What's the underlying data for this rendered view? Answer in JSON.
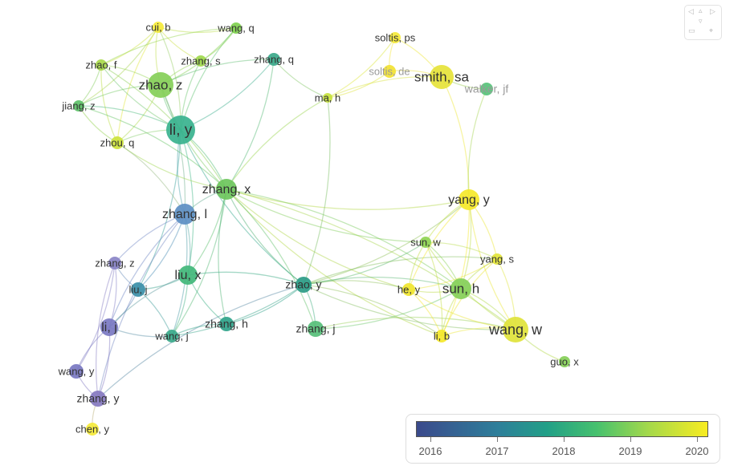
{
  "colors": {
    "y2016": "#3b4a8c",
    "y2017": "#2e7f9a",
    "y2018": "#22a087",
    "y2019": "#47c16e",
    "y2020": "#f8ec21"
  },
  "nodes": [
    {
      "id": "cui_b",
      "label": "cui, b",
      "color": "#f5ea3a"
    },
    {
      "id": "wang_q",
      "label": "wang, q",
      "color": "#7fd04e"
    },
    {
      "id": "zhang_q",
      "label": "zhang, q",
      "color": "#3aa98a"
    },
    {
      "id": "zhao_f",
      "label": "zhao, f",
      "color": "#a8d94a"
    },
    {
      "id": "zhao_z",
      "label": "zhao, z",
      "color": "#86cf58"
    },
    {
      "id": "zhang_s",
      "label": "zhang, s",
      "color": "#9ed84c"
    },
    {
      "id": "jiang_z",
      "label": "jiang, z",
      "color": "#5cc067"
    },
    {
      "id": "li_y",
      "label": "li, y",
      "color": "#38b28e"
    },
    {
      "id": "zhou_q",
      "label": "zhou, q",
      "color": "#cde33c"
    },
    {
      "id": "zhang_x",
      "label": "zhang, x",
      "color": "#6cc55c"
    },
    {
      "id": "zhang_l",
      "label": "zhang, l",
      "color": "#5d8fc3"
    },
    {
      "id": "zhang_z",
      "label": "zhang, z",
      "color": "#8a84c7"
    },
    {
      "id": "liu_x",
      "label": "liu, x",
      "color": "#41b77a"
    },
    {
      "id": "liu_j",
      "label": "liu, j",
      "color": "#3b8fa8"
    },
    {
      "id": "li_j",
      "label": "li, j",
      "color": "#7a78c2"
    },
    {
      "id": "wang_j",
      "label": "wang, j",
      "color": "#3aa98a"
    },
    {
      "id": "zhang_h",
      "label": "zhang, h",
      "color": "#2fa38a"
    },
    {
      "id": "zhao_y",
      "label": "zhao, y",
      "color": "#2a9b86"
    },
    {
      "id": "zhang_j",
      "label": "zhang, j",
      "color": "#56bf78"
    },
    {
      "id": "wang_y",
      "label": "wang, y",
      "color": "#7a78c2"
    },
    {
      "id": "zhang_y",
      "label": "zhang, y",
      "color": "#8578c0"
    },
    {
      "id": "chen_y",
      "label": "chen, y",
      "color": "#f5ea3a"
    },
    {
      "id": "ma_h",
      "label": "ma, h",
      "color": "#c7e23d"
    },
    {
      "id": "soltis_ps",
      "label": "soltis, ps",
      "color": "#f5ea3a"
    },
    {
      "id": "soltis_de",
      "label": "soltis, de",
      "color": "#f2e233"
    },
    {
      "id": "smith_sa",
      "label": "smith, sa",
      "color": "#e6e33a"
    },
    {
      "id": "walker_jf",
      "label": "walker, jf",
      "color": "#57c27a"
    },
    {
      "id": "yang_y",
      "label": "yang, y",
      "color": "#f5e82a"
    },
    {
      "id": "sun_w",
      "label": "sun, w",
      "color": "#8fd452"
    },
    {
      "id": "yang_s",
      "label": "yang, s",
      "color": "#e2e43a"
    },
    {
      "id": "he_y",
      "label": "he, y",
      "color": "#f0e52e"
    },
    {
      "id": "sun_h",
      "label": "sun, h",
      "color": "#84cf58"
    },
    {
      "id": "li_b",
      "label": "li, b",
      "color": "#f5e82a"
    },
    {
      "id": "wang_w",
      "label": "wang, w",
      "color": "#dfe33a"
    },
    {
      "id": "guo_x",
      "label": "guo, x",
      "color": "#86cf58"
    }
  ],
  "edges": [
    [
      "cui_b",
      "zhao_z"
    ],
    [
      "cui_b",
      "li_y"
    ],
    [
      "cui_b",
      "wang_q"
    ],
    [
      "cui_b",
      "zhao_f"
    ],
    [
      "cui_b",
      "zhang_s"
    ],
    [
      "cui_b",
      "jiang_z"
    ],
    [
      "cui_b",
      "zhou_q"
    ],
    [
      "wang_q",
      "zhao_z"
    ],
    [
      "wang_q",
      "li_y"
    ],
    [
      "wang_q",
      "zhang_s"
    ],
    [
      "wang_q",
      "zhao_f"
    ],
    [
      "zhang_q",
      "li_y"
    ],
    [
      "zhang_q",
      "zhao_z"
    ],
    [
      "zhang_q",
      "zhang_x"
    ],
    [
      "zhang_q",
      "ma_h"
    ],
    [
      "zhao_f",
      "zhao_z"
    ],
    [
      "zhao_f",
      "li_y"
    ],
    [
      "zhao_f",
      "jiang_z"
    ],
    [
      "zhao_f",
      "zhou_q"
    ],
    [
      "zhao_f",
      "zhang_x"
    ],
    [
      "zhao_z",
      "li_y"
    ],
    [
      "zhao_z",
      "zhang_s"
    ],
    [
      "zhao_z",
      "jiang_z"
    ],
    [
      "zhao_z",
      "zhou_q"
    ],
    [
      "zhao_z",
      "zhang_x"
    ],
    [
      "zhao_z",
      "zhang_l"
    ],
    [
      "zhang_s",
      "li_y"
    ],
    [
      "jiang_z",
      "li_y"
    ],
    [
      "jiang_z",
      "zhou_q"
    ],
    [
      "jiang_z",
      "zhang_x"
    ],
    [
      "li_y",
      "zhou_q"
    ],
    [
      "li_y",
      "zhang_x"
    ],
    [
      "li_y",
      "zhang_l"
    ],
    [
      "li_y",
      "liu_x"
    ],
    [
      "li_y",
      "zhao_y"
    ],
    [
      "li_y",
      "liu_j"
    ],
    [
      "zhou_q",
      "zhang_x"
    ],
    [
      "zhou_q",
      "zhang_l"
    ],
    [
      "zhang_x",
      "zhang_l"
    ],
    [
      "zhang_x",
      "liu_x"
    ],
    [
      "zhang_x",
      "zhao_y"
    ],
    [
      "zhang_x",
      "ma_h"
    ],
    [
      "zhang_x",
      "yang_y"
    ],
    [
      "zhang_x",
      "sun_h"
    ],
    [
      "zhang_x",
      "li_b"
    ],
    [
      "zhang_x",
      "wang_w"
    ],
    [
      "zhang_x",
      "sun_w"
    ],
    [
      "zhang_x",
      "zhang_j"
    ],
    [
      "zhang_x",
      "he_y"
    ],
    [
      "zhang_x",
      "wang_j"
    ],
    [
      "zhang_x",
      "zhang_h"
    ],
    [
      "zhang_l",
      "liu_j"
    ],
    [
      "zhang_l",
      "li_j"
    ],
    [
      "zhang_l",
      "liu_x"
    ],
    [
      "zhang_l",
      "zhang_z"
    ],
    [
      "zhang_l",
      "wang_j"
    ],
    [
      "zhang_l",
      "zhang_y"
    ],
    [
      "zhang_z",
      "li_j"
    ],
    [
      "zhang_z",
      "liu_j"
    ],
    [
      "zhang_z",
      "wang_y"
    ],
    [
      "zhang_z",
      "zhang_y"
    ],
    [
      "liu_j",
      "li_j"
    ],
    [
      "liu_j",
      "liu_x"
    ],
    [
      "liu_j",
      "wang_j"
    ],
    [
      "li_j",
      "wang_y"
    ],
    [
      "li_j",
      "zhang_y"
    ],
    [
      "li_j",
      "wang_j"
    ],
    [
      "li_j",
      "liu_x"
    ],
    [
      "wang_y",
      "zhang_y"
    ],
    [
      "zhang_y",
      "zhao_y"
    ],
    [
      "zhang_y",
      "chen_y"
    ],
    [
      "liu_x",
      "wang_j"
    ],
    [
      "liu_x",
      "zhang_h"
    ],
    [
      "liu_x",
      "zhao_y"
    ],
    [
      "wang_j",
      "zhao_y"
    ],
    [
      "wang_j",
      "zhang_h"
    ],
    [
      "zhang_h",
      "zhao_y"
    ],
    [
      "zhao_y",
      "zhang_j"
    ],
    [
      "zhao_y",
      "ma_h"
    ],
    [
      "zhao_y",
      "sun_h"
    ],
    [
      "zhao_y",
      "wang_w"
    ],
    [
      "zhao_y",
      "li_b"
    ],
    [
      "zhao_y",
      "yang_y"
    ],
    [
      "zhao_y",
      "he_y"
    ],
    [
      "zhao_y",
      "sun_w"
    ],
    [
      "zhao_y",
      "yang_s"
    ],
    [
      "zhang_j",
      "sun_h"
    ],
    [
      "zhang_j",
      "wang_w"
    ],
    [
      "ma_h",
      "soltis_ps"
    ],
    [
      "ma_h",
      "smith_sa"
    ],
    [
      "ma_h",
      "soltis_de"
    ],
    [
      "soltis_ps",
      "smith_sa"
    ],
    [
      "soltis_ps",
      "soltis_de"
    ],
    [
      "soltis_de",
      "smith_sa"
    ],
    [
      "smith_sa",
      "walker_jf"
    ],
    [
      "smith_sa",
      "yang_y"
    ],
    [
      "walker_jf",
      "yang_y"
    ],
    [
      "yang_y",
      "sun_h"
    ],
    [
      "yang_y",
      "wang_w"
    ],
    [
      "yang_y",
      "li_b"
    ],
    [
      "yang_y",
      "sun_w"
    ],
    [
      "yang_y",
      "yang_s"
    ],
    [
      "yang_y",
      "he_y"
    ],
    [
      "sun_w",
      "sun_h"
    ],
    [
      "sun_w",
      "wang_w"
    ],
    [
      "sun_w",
      "li_b"
    ],
    [
      "sun_w",
      "he_y"
    ],
    [
      "sun_w",
      "yang_s"
    ],
    [
      "yang_s",
      "sun_h"
    ],
    [
      "yang_s",
      "wang_w"
    ],
    [
      "yang_s",
      "li_b"
    ],
    [
      "yang_s",
      "he_y"
    ],
    [
      "he_y",
      "sun_h"
    ],
    [
      "he_y",
      "li_b"
    ],
    [
      "he_y",
      "wang_w"
    ],
    [
      "sun_h",
      "wang_w"
    ],
    [
      "sun_h",
      "li_b"
    ],
    [
      "li_b",
      "wang_w"
    ],
    [
      "wang_w",
      "guo_x"
    ]
  ],
  "navigator": {
    "up_icon": "triangle-up",
    "left_icon": "triangle-left",
    "right_icon": "triangle-right",
    "down_icon": "triangle-down",
    "zoom_icon": "minus-box",
    "fit_icon": "target"
  },
  "legend": {
    "ticks": [
      "2016",
      "2017",
      "2018",
      "2019",
      "2020"
    ]
  }
}
